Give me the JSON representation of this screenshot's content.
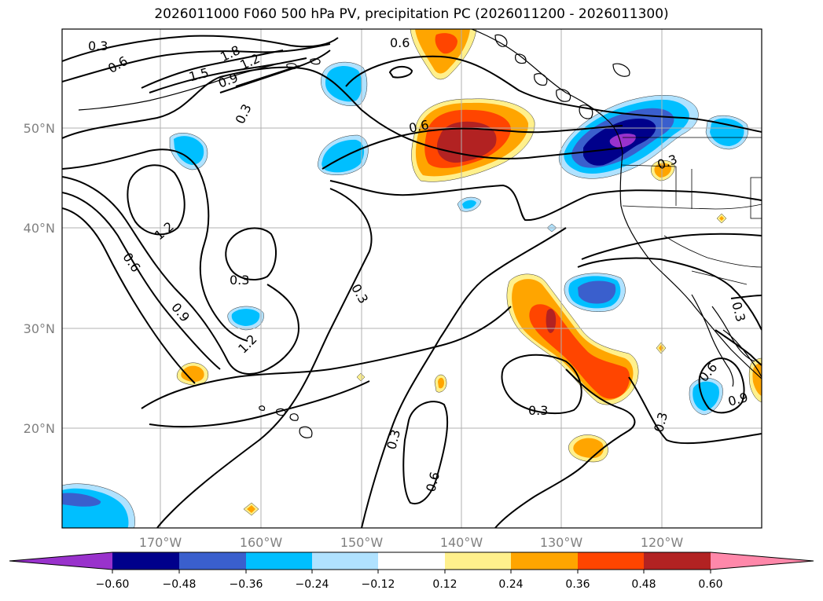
{
  "title": "2026011000 F060 500 hPa PV, precipitation PC (2026011200 - 2026011300)",
  "lat_labels": [
    "50°N",
    "40°N",
    "30°N",
    "20°N"
  ],
  "lon_labels": [
    "170°W",
    "160°W",
    "150°W",
    "140°W",
    "130°W",
    "120°W"
  ],
  "contour_labels": [
    "0.3",
    "0.6",
    "0.9",
    "1.2",
    "1.5",
    "1.8"
  ],
  "colorbar": {
    "ticks": [
      "−0.60",
      "−0.48",
      "−0.36",
      "−0.24",
      "−0.12",
      "0.12",
      "0.24",
      "0.36",
      "0.48",
      "0.60"
    ],
    "colors": [
      "#9932cc",
      "#00008b",
      "#3a5fcd",
      "#00bfff",
      "#b0e2ff",
      "#ffffff",
      "#fff08c",
      "#ffa500",
      "#ff4500",
      "#b22222",
      "#ff88aa"
    ]
  },
  "fill_colors": {
    "neg_darkest": "#9932cc",
    "neg_dark": "#00008b",
    "neg_mid": "#3a5fcd",
    "neg_light": "#00bfff",
    "neg_lightest": "#b0e2ff",
    "pos_lightest": "#fff08c",
    "pos_light": "#ffa500",
    "pos_mid": "#ff4500",
    "pos_dark": "#b22222"
  }
}
